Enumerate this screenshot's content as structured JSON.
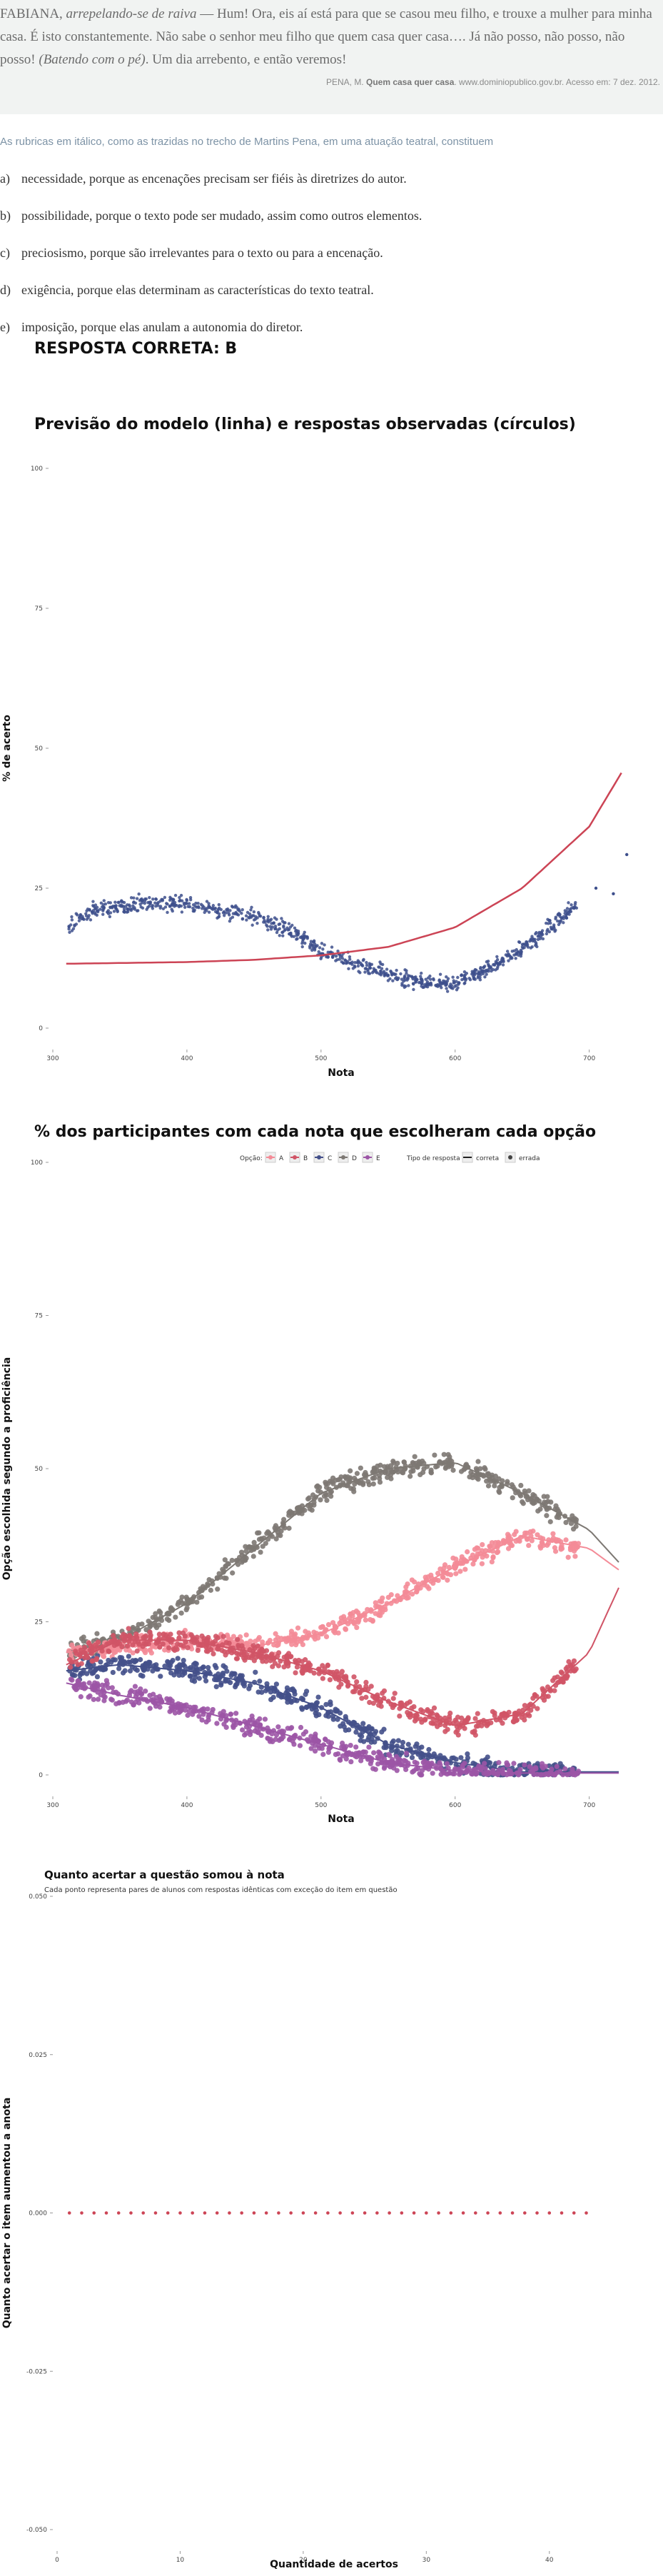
{
  "quote": {
    "speaker": "FABIANA,",
    "stage1": "arrepelando-se de raiva",
    "line1": " — Hum! Ora, eis aí está para que se casou meu filho, e trouxe a mulher para minha casa. É isto constantemente. Não sabe o senhor meu filho que quem casa quer casa…. Já não posso, não posso, não posso! ",
    "stage2": "(Batendo com o pé)",
    "line2": ". Um dia arrebento, e então veremos!",
    "source_prefix": "PENA, M. ",
    "source_title": "Quem casa quer casa",
    "source_suffix": ". www.dominiopublico.gov.br. Acesso em: 7 dez. 2012."
  },
  "question": {
    "stem": "As rubricas em itálico, como as trazidas no trecho de Martins Pena, em uma atuação teatral, constituem",
    "alternatives": [
      {
        "letter": "a)",
        "text": "necessidade, porque as encenações precisam ser fiéis às diretrizes do autor."
      },
      {
        "letter": "b)",
        "text": "possibilidade, porque o texto pode ser mudado, assim como outros elementos."
      },
      {
        "letter": "c)",
        "text": "preciosismo, porque são irrelevantes para o texto ou para a encenação."
      },
      {
        "letter": "d)",
        "text": "exigência, porque elas determinam as características do texto teatral."
      },
      {
        "letter": "e)",
        "text": "imposição, porque elas anulam a autonomia do diretor."
      }
    ],
    "answer": "RESPOSTA CORRETA: B"
  },
  "chart_data": [
    {
      "type": "scatter",
      "title": "Previsão do modelo (linha) e respostas observadas (círculos)",
      "xlabel": "Nota",
      "ylabel": "% de acerto",
      "xlim": [
        300,
        730
      ],
      "ylim": [
        0,
        100
      ],
      "xticks": [
        300,
        400,
        500,
        600,
        700
      ],
      "yticks": [
        0,
        25,
        50,
        75,
        100
      ],
      "colors": {
        "points": "#3d4f8c",
        "model": "#cc4455"
      },
      "model_curve": {
        "x": [
          310,
          400,
          450,
          500,
          550,
          600,
          650,
          700,
          725
        ],
        "y": [
          11.5,
          11.8,
          12.2,
          13,
          14.5,
          18,
          25,
          36,
          46
        ]
      },
      "observed": {
        "x": [
          310,
          330,
          350,
          380,
          400,
          420,
          450,
          480,
          500,
          520,
          550,
          580,
          600,
          620,
          650,
          680,
          700,
          725
        ],
        "y": [
          18,
          21,
          22,
          22.5,
          22,
          21,
          20,
          17,
          14,
          12,
          9.5,
          8,
          8,
          10,
          14,
          20,
          24,
          31
        ]
      }
    },
    {
      "type": "scatter",
      "title": "% dos participantes com cada nota que escolheram cada opção",
      "xlabel": "Nota",
      "ylabel": "Opção escolhida segundo a proficiência",
      "xlim": [
        300,
        730
      ],
      "ylim": [
        0,
        100
      ],
      "xticks": [
        300,
        400,
        500,
        600,
        700
      ],
      "yticks": [
        0,
        25,
        50,
        75,
        100
      ],
      "legend": {
        "option_title": "Opção:",
        "options": [
          "A",
          "B",
          "C",
          "D",
          "E"
        ],
        "type_title": "Tipo de resposta",
        "types": [
          "correta",
          "errada"
        ]
      },
      "x": [
        310,
        350,
        400,
        450,
        500,
        550,
        600,
        650,
        700,
        725
      ],
      "series": [
        {
          "name": "A",
          "color": "#f48b97",
          "values": [
            20,
            21,
            22,
            21,
            23,
            28,
            34,
            39,
            37,
            33
          ]
        },
        {
          "name": "B",
          "color": "#d05466",
          "values": [
            18,
            22,
            22,
            20,
            17,
            12,
            8,
            10,
            20,
            32
          ]
        },
        {
          "name": "C",
          "color": "#44508a",
          "values": [
            17,
            18,
            17,
            15,
            11,
            5,
            2,
            0.5,
            0.5,
            0.5
          ]
        },
        {
          "name": "D",
          "color": "#7d7873",
          "values": [
            20,
            22,
            28,
            37,
            46,
            50,
            51,
            46,
            40,
            34
          ]
        },
        {
          "name": "E",
          "color": "#9c55a6",
          "values": [
            15,
            13,
            11,
            8,
            5,
            2,
            0.7,
            0.3,
            0.3,
            0.3
          ]
        }
      ]
    },
    {
      "type": "scatter",
      "title": "Quanto acertar a questão somou à nota",
      "subtitle": "Cada ponto representa pares de alunos com respostas idênticas com exceção do item em questão",
      "xlabel": "Quantidade de acertos",
      "ylabel": "Quanto acertar o item aumentou a anota",
      "xlim": [
        0,
        45
      ],
      "ylim": [
        -0.05,
        0.05
      ],
      "xticks": [
        0,
        10,
        20,
        30,
        40
      ],
      "yticks": [
        -0.05,
        -0.025,
        0,
        0.025,
        0.05
      ],
      "ytick_labels": [
        "-0.050",
        "-0.025",
        "0.000",
        "0.025",
        "0.050"
      ],
      "color": "#cc4455",
      "x": [
        1,
        2,
        3,
        4,
        5,
        6,
        7,
        8,
        9,
        10,
        11,
        12,
        13,
        14,
        15,
        16,
        17,
        18,
        19,
        20,
        21,
        22,
        23,
        24,
        25,
        26,
        27,
        28,
        29,
        30,
        31,
        32,
        33,
        34,
        35,
        36,
        37,
        38,
        39,
        40,
        41,
        42,
        43
      ],
      "y_constant": 0
    }
  ]
}
